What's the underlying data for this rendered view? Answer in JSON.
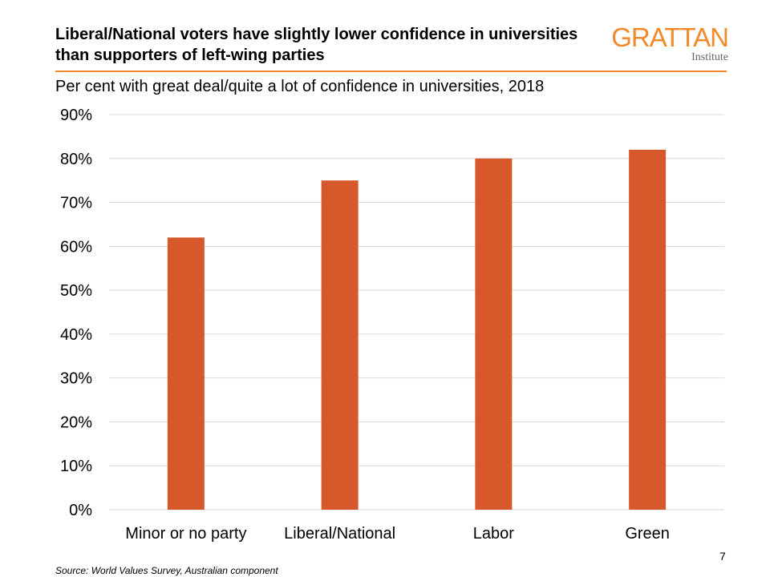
{
  "header": {
    "title": "Liberal/National voters have slightly lower confidence in universities than supporters of left-wing parties",
    "logo_main": "GRATTAN",
    "logo_sub": "Institute"
  },
  "colors": {
    "bar": "#d6582b",
    "accent": "#f08a2b",
    "grid": "#d9d9d9"
  },
  "chart_data": {
    "type": "bar",
    "title": "",
    "subtitle": "Per cent with great deal/quite a lot of confidence in universities, 2018",
    "categories": [
      "Minor or no party",
      "Liberal/National",
      "Labor",
      "Green"
    ],
    "values": [
      62,
      75,
      80,
      82
    ],
    "unit": "%",
    "ylim": [
      0,
      90
    ],
    "yticks": [
      0,
      10,
      20,
      30,
      40,
      50,
      60,
      70,
      80,
      90
    ],
    "ytick_labels": [
      "0%",
      "10%",
      "20%",
      "30%",
      "40%",
      "50%",
      "60%",
      "70%",
      "80%",
      "90%"
    ],
    "grid": true,
    "legend": "none"
  },
  "footer": {
    "source": "Source: World Values Survey,  Australian component",
    "page_number": "7"
  }
}
